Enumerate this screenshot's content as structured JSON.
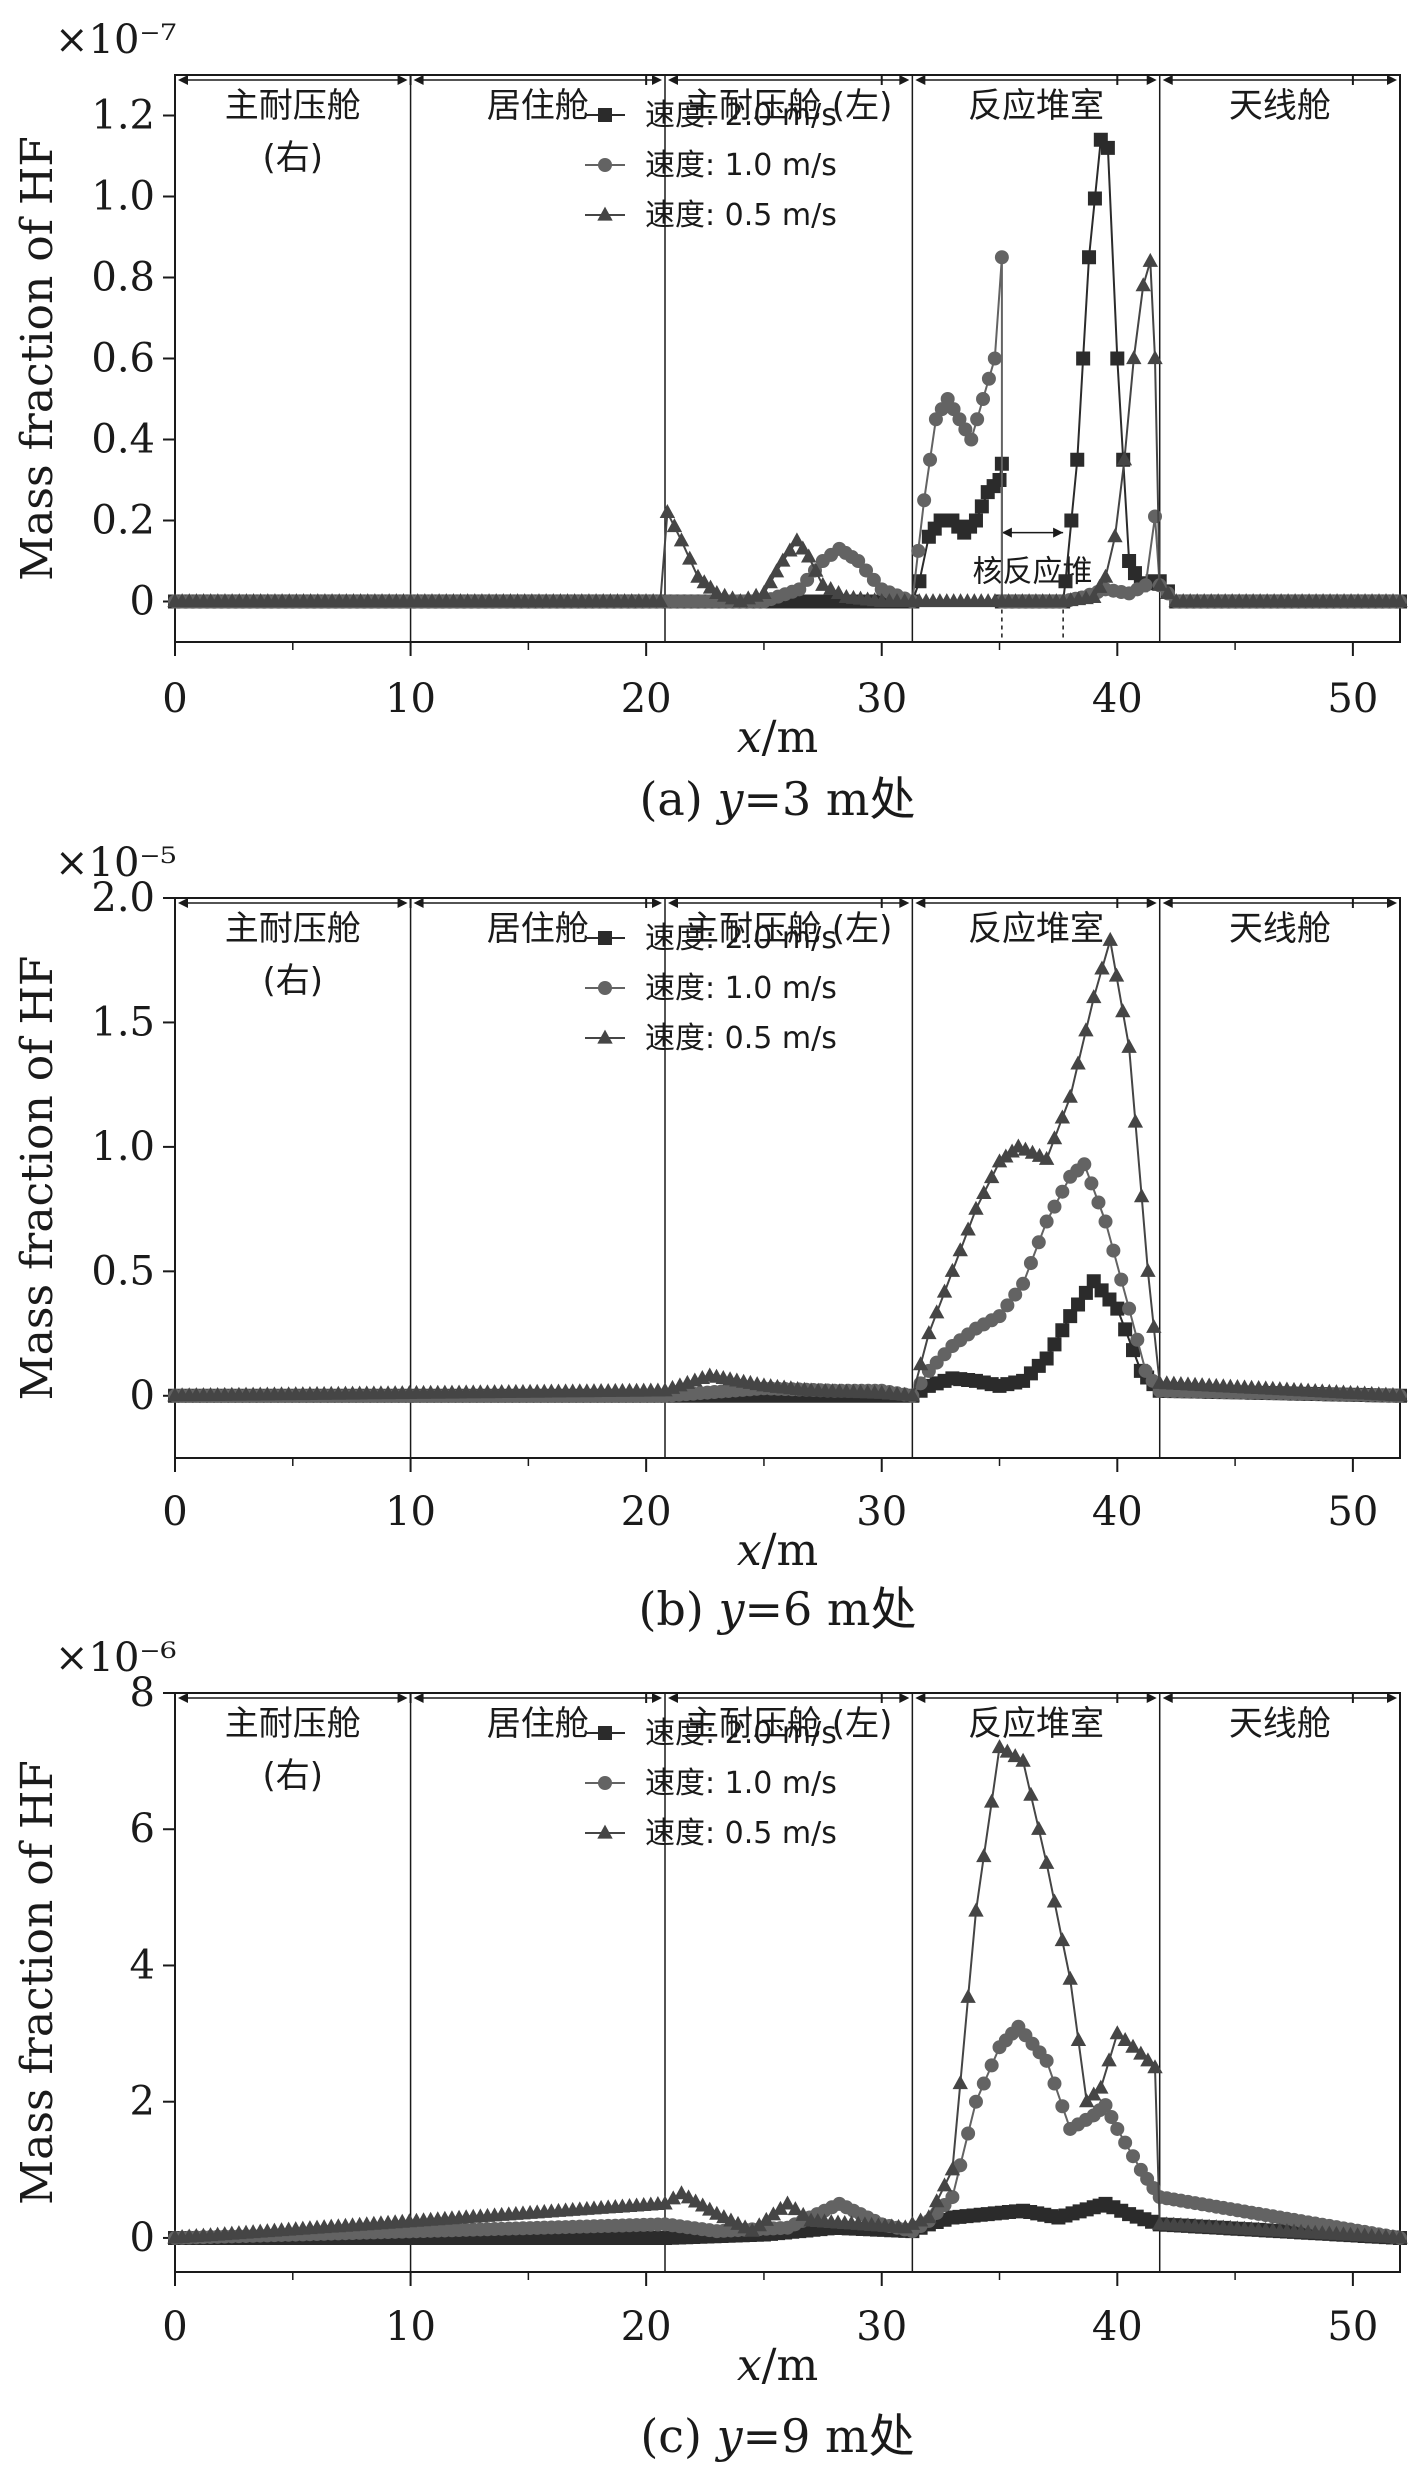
{
  "colors": {
    "series_2_0": "#2b2b2b",
    "series_1_0": "#636363",
    "series_0_5": "#454545",
    "axis": "#1a1a1a",
    "background": "#ffffff"
  },
  "zone_boundaries_m": [
    10,
    20.8,
    31.3,
    41.8
  ],
  "zones": [
    "主耐压舱 (右)",
    "居住舱",
    "主耐压舱 (左)",
    "反应堆室",
    "天线舱"
  ],
  "chart_data": [
    {
      "type": "line",
      "exponent_label": "×10⁻⁷",
      "caption": "(a) y=3 m处",
      "caption_parts": {
        "prefix": "(a) ",
        "var": "y",
        "rest": "=3 m处"
      },
      "xlabel": "x/m",
      "xlabel_parts": {
        "var": "x",
        "rest": "/m"
      },
      "ylabel": "Mass fraction of HF",
      "xlim": [
        0,
        52
      ],
      "ylim": [
        -0.1,
        1.3
      ],
      "x_ticks": [
        "0",
        "10",
        "20",
        "30",
        "40",
        "50"
      ],
      "y_ticks": [
        "0",
        "0.2",
        "0.4",
        "0.6",
        "0.8",
        "1.0",
        "1.2"
      ],
      "grid": false,
      "legend_position": "upper-left of panel",
      "zone_labels": [
        {
          "line1": "主耐压舱",
          "line2": "(右)"
        },
        {
          "line1": "居住舱",
          "line2": ""
        },
        {
          "line1": "主耐压舱 (左)",
          "line2": ""
        },
        {
          "line1": "反应堆室",
          "line2": ""
        },
        {
          "line1": "天线舱",
          "line2": ""
        }
      ],
      "annotation": {
        "text": "核反应堆",
        "x_range": [
          35.1,
          37.7
        ]
      },
      "series": [
        {
          "name": "速度: 2.0 m/s",
          "marker": "square",
          "color_key": "series_2_0",
          "x": [
            0,
            10,
            20,
            30.5,
            31.3,
            31.6,
            32,
            32.5,
            33,
            33.5,
            34,
            34.5,
            35,
            35.1,
            35.1,
            37.7,
            37.8,
            38.3,
            38.8,
            39.3,
            39.6,
            40,
            40.5,
            41,
            41.5,
            41.8,
            42.5,
            52
          ],
          "y": [
            0,
            0,
            0,
            0,
            0,
            0.05,
            0.16,
            0.2,
            0.2,
            0.17,
            0.2,
            0.27,
            0.3,
            0.34,
            0,
            0,
            0.05,
            0.35,
            0.85,
            1.14,
            1.12,
            0.6,
            0.1,
            0.04,
            0.05,
            0.05,
            0,
            0
          ]
        },
        {
          "name": "速度: 1.0 m/s",
          "marker": "circle",
          "color_key": "series_1_0",
          "x": [
            0,
            10,
            20,
            25,
            26.5,
            27.5,
            28.2,
            29,
            30,
            31.3,
            31.8,
            32.3,
            32.8,
            33.3,
            33.8,
            34.3,
            34.8,
            35.1,
            35.1,
            37.7,
            38.5,
            39.5,
            40.5,
            41.2,
            41.6,
            41.8,
            42.5,
            52
          ],
          "y": [
            0,
            0,
            0,
            0,
            0.03,
            0.1,
            0.13,
            0.1,
            0.03,
            0,
            0.25,
            0.45,
            0.5,
            0.45,
            0.4,
            0.5,
            0.6,
            0.85,
            0,
            0,
            0.01,
            0.03,
            0.02,
            0.04,
            0.21,
            0.04,
            0,
            0
          ]
        },
        {
          "name": "速度: 0.5 m/s",
          "marker": "triangle",
          "color_key": "series_0_5",
          "x": [
            0,
            10,
            20.6,
            20.9,
            21.5,
            22.2,
            23,
            24,
            25,
            25.8,
            26.4,
            26.9,
            27.5,
            28.5,
            30,
            31.3,
            35.1,
            37.7,
            39,
            39.5,
            39.9,
            40.3,
            40.7,
            41.1,
            41.4,
            41.6,
            41.8,
            42.5,
            52
          ],
          "y": [
            0,
            0,
            0,
            0.22,
            0.15,
            0.06,
            0.02,
            0,
            0.02,
            0.1,
            0.15,
            0.11,
            0.04,
            0.01,
            0,
            0,
            0,
            0,
            0.01,
            0.06,
            0.16,
            0.35,
            0.6,
            0.78,
            0.84,
            0.6,
            0.04,
            0,
            0
          ]
        }
      ]
    },
    {
      "type": "line",
      "exponent_label": "×10⁻⁵",
      "caption": "(b) y=6 m处",
      "caption_parts": {
        "prefix": "(b) ",
        "var": "y",
        "rest": "=6 m处"
      },
      "xlabel": "x/m",
      "xlabel_parts": {
        "var": "x",
        "rest": "/m"
      },
      "ylabel": "Mass fraction of HF",
      "xlim": [
        0,
        52
      ],
      "ylim": [
        -0.25,
        2.0
      ],
      "x_ticks": [
        "0",
        "10",
        "20",
        "30",
        "40",
        "50"
      ],
      "y_ticks": [
        "0",
        "0.5",
        "1.0",
        "1.5",
        "2.0"
      ],
      "grid": false,
      "legend_position": "upper-left of panel",
      "zone_labels": [
        {
          "line1": "主耐压舱",
          "line2": "(右)"
        },
        {
          "line1": "居住舱",
          "line2": ""
        },
        {
          "line1": "主耐压舱 (左)",
          "line2": ""
        },
        {
          "line1": "反应堆室",
          "line2": ""
        },
        {
          "line1": "天线舱",
          "line2": ""
        }
      ],
      "series": [
        {
          "name": "速度: 2.0 m/s",
          "marker": "square",
          "color_key": "series_2_0",
          "x": [
            0,
            20.8,
            31.3,
            32,
            33,
            34,
            35,
            36,
            37,
            38,
            39,
            40,
            41,
            41.8,
            52
          ],
          "y": [
            0,
            0,
            0,
            0.04,
            0.07,
            0.06,
            0.04,
            0.06,
            0.15,
            0.32,
            0.46,
            0.35,
            0.1,
            0.02,
            0
          ]
        },
        {
          "name": "速度: 1.0 m/s",
          "marker": "circle",
          "color_key": "series_1_0",
          "x": [
            0,
            20.8,
            25,
            28,
            30,
            31.3,
            32,
            33,
            34,
            35,
            36,
            37,
            38,
            38.6,
            39.5,
            40.5,
            41.2,
            41.8,
            52
          ],
          "y": [
            0,
            0,
            0.03,
            0.02,
            0.02,
            0,
            0.1,
            0.2,
            0.27,
            0.32,
            0.45,
            0.7,
            0.88,
            0.93,
            0.7,
            0.35,
            0.1,
            0.02,
            0
          ]
        },
        {
          "name": "速度: 0.5 m/s",
          "marker": "triangle",
          "color_key": "series_0_5",
          "x": [
            0,
            20.8,
            22.7,
            25,
            27,
            30,
            31.3,
            32,
            33,
            34,
            35,
            35.8,
            37,
            38,
            39,
            39.7,
            40.5,
            41.3,
            41.8,
            52
          ],
          "y": [
            0,
            0.02,
            0.08,
            0.04,
            0.02,
            0.01,
            0,
            0.25,
            0.5,
            0.75,
            0.94,
            1.0,
            0.95,
            1.2,
            1.6,
            1.83,
            1.4,
            0.5,
            0.05,
            0
          ]
        }
      ]
    },
    {
      "type": "line",
      "exponent_label": "×10⁻⁶",
      "caption": "(c) y=9 m处",
      "caption_parts": {
        "prefix": "(c) ",
        "var": "y",
        "rest": "=9 m处"
      },
      "xlabel": "x/m",
      "xlabel_parts": {
        "var": "x",
        "rest": "/m"
      },
      "ylabel": "Mass fraction of HF",
      "xlim": [
        0,
        52
      ],
      "ylim": [
        -0.5,
        8
      ],
      "x_ticks": [
        "0",
        "10",
        "20",
        "30",
        "40",
        "50"
      ],
      "y_ticks": [
        "0",
        "2",
        "4",
        "6",
        "8"
      ],
      "grid": false,
      "legend_position": "upper-left of panel",
      "zone_labels": [
        {
          "line1": "主耐压舱",
          "line2": "(右)"
        },
        {
          "line1": "居住舱",
          "line2": ""
        },
        {
          "line1": "主耐压舱 (左)",
          "line2": ""
        },
        {
          "line1": "反应堆室",
          "line2": ""
        },
        {
          "line1": "天线舱",
          "line2": ""
        }
      ],
      "series": [
        {
          "name": "速度: 2.0 m/s",
          "marker": "square",
          "color_key": "series_2_0",
          "x": [
            0,
            20.8,
            25,
            28,
            31.3,
            32,
            33,
            34.5,
            36,
            37.5,
            39,
            39.5,
            40.5,
            41.8,
            52
          ],
          "y": [
            0,
            0,
            0.05,
            0.15,
            0.1,
            0.2,
            0.3,
            0.35,
            0.4,
            0.3,
            0.45,
            0.5,
            0.35,
            0.2,
            0
          ]
        },
        {
          "name": "速度: 1.0 m/s",
          "marker": "circle",
          "color_key": "series_1_0",
          "x": [
            0,
            20.8,
            23,
            26,
            28.2,
            30,
            31.3,
            32,
            33,
            34,
            35,
            35.8,
            37,
            38,
            39,
            39.5,
            40,
            41,
            41.8,
            52
          ],
          "y": [
            0,
            0.2,
            0.1,
            0.15,
            0.5,
            0.2,
            0.1,
            0.25,
            0.6,
            2.0,
            2.8,
            3.1,
            2.6,
            1.6,
            1.8,
            1.95,
            1.6,
            1.0,
            0.6,
            0
          ]
        },
        {
          "name": "速度: 0.5 m/s",
          "marker": "triangle",
          "color_key": "series_0_5",
          "x": [
            0,
            20.8,
            21.5,
            23,
            24.5,
            26,
            27,
            29,
            31,
            31.3,
            32,
            33,
            34,
            35,
            36,
            37,
            38,
            38.7,
            39.3,
            40,
            41,
            41.6,
            41.8,
            52
          ],
          "y": [
            0,
            0.5,
            0.65,
            0.35,
            0.1,
            0.5,
            0.25,
            0.2,
            0.15,
            0.2,
            0.3,
            1.0,
            4.8,
            7.2,
            7.0,
            5.5,
            3.8,
            2.0,
            2.2,
            3.0,
            2.7,
            2.5,
            0.2,
            0
          ]
        }
      ]
    }
  ]
}
